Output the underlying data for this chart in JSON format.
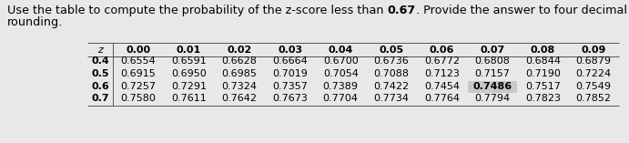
{
  "text_part1": "Use the table to compute the probability of the z-score less than ",
  "text_bold": "0.67",
  "text_part2": ". Provide the answer to four decimal places without",
  "text_line2": "rounding.",
  "col_headers": [
    "0.00",
    "0.01",
    "0.02",
    "0.03",
    "0.04",
    "0.05",
    "0.06",
    "0.07",
    "0.08",
    "0.09"
  ],
  "row_headers": [
    "0.4",
    "0.5",
    "0.6",
    "0.7"
  ],
  "table_data": [
    [
      "0.6554",
      "0.6591",
      "0.6628",
      "0.6664",
      "0.6700",
      "0.6736",
      "0.6772",
      "0.6808",
      "0.6844",
      "0.6879"
    ],
    [
      "0.6915",
      "0.6950",
      "0.6985",
      "0.7019",
      "0.7054",
      "0.7088",
      "0.7123",
      "0.7157",
      "0.7190",
      "0.7224"
    ],
    [
      "0.7257",
      "0.7291",
      "0.7324",
      "0.7357",
      "0.7389",
      "0.7422",
      "0.7454",
      "0.7486",
      "0.7517",
      "0.7549"
    ],
    [
      "0.7580",
      "0.7611",
      "0.7642",
      "0.7673",
      "0.7704",
      "0.7734",
      "0.7764",
      "0.7794",
      "0.7823",
      "0.7852"
    ]
  ],
  "highlight_row": 2,
  "highlight_col": 7,
  "bg_color": "#e8e8e8",
  "table_bg": "#e8e8e8",
  "font_size": 8.0,
  "header_font_size": 8.0
}
